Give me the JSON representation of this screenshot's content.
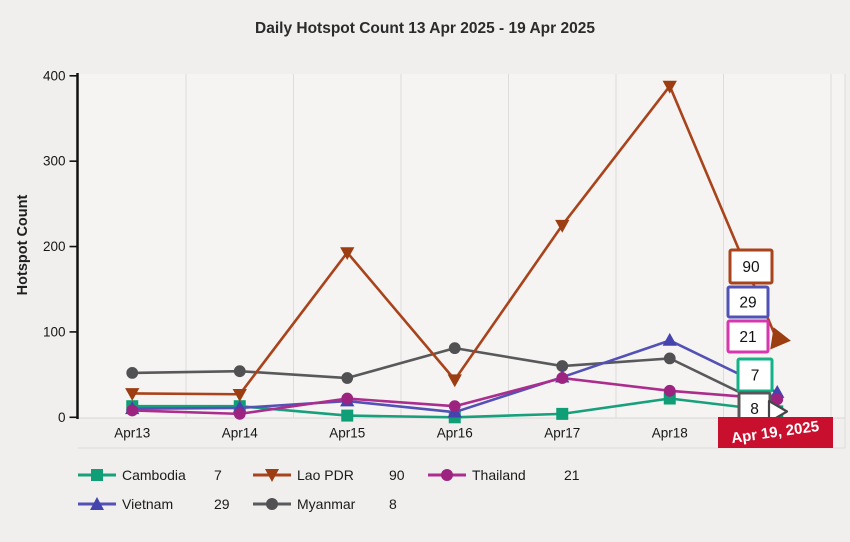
{
  "chart_data": {
    "type": "line",
    "title": "Daily Hotspot Count 13 Apr 2025 - 19 Apr 2025",
    "ylabel": "Hotspot Count",
    "xlabel": "",
    "categories": [
      "Apr13",
      "Apr14",
      "Apr15",
      "Apr16",
      "Apr17",
      "Apr18"
    ],
    "final_category_label": "Apr 19, 2025",
    "ylim": [
      0,
      400
    ],
    "yticks": [
      0,
      100,
      200,
      300,
      400
    ],
    "grid": "vertical-band-boundaries",
    "legend_position": "bottom",
    "series": [
      {
        "name": "Cambodia",
        "marker": "square",
        "color": "#18a07c",
        "marker_color": "#0f9e76",
        "label_border": "#13b287",
        "values": [
          13,
          13,
          2,
          0,
          4,
          22,
          7
        ],
        "end_value": 7
      },
      {
        "name": "Lao PDR",
        "marker": "triangle-down",
        "color": "#a8431b",
        "marker_color": "#9c3d12",
        "label_border": "#a8431b",
        "values": [
          28,
          27,
          193,
          44,
          225,
          388,
          90
        ],
        "end_value": 90
      },
      {
        "name": "Thailand",
        "marker": "circle",
        "color": "#ab2d8d",
        "marker_color": "#9c2480",
        "label_border": "#d636ae",
        "values": [
          8,
          4,
          22,
          13,
          46,
          31,
          21
        ],
        "end_value": 21
      },
      {
        "name": "Vietnam",
        "marker": "triangle-up",
        "color": "#5351b5",
        "marker_color": "#4543ad",
        "label_border": "#5053b5",
        "values": [
          10,
          11,
          19,
          6,
          47,
          90,
          29
        ],
        "end_value": 29
      },
      {
        "name": "Myanmar",
        "marker": "circle",
        "color": "#59595b",
        "marker_color": "#515154",
        "label_border": "#58585a",
        "values": [
          52,
          54,
          46,
          81,
          60,
          69,
          8
        ],
        "end_value": 8
      }
    ],
    "end_label_order": [
      "Lao PDR",
      "Vietnam",
      "Thailand",
      "Cambodia",
      "Myanmar"
    ],
    "legend_rows": [
      [
        "Cambodia",
        "Lao PDR",
        "Thailand"
      ],
      [
        "Vietnam",
        "Myanmar"
      ]
    ]
  },
  "colors": {
    "highlight_bg": "#c8102e",
    "highlight_text": "#ffffff",
    "axis": "#111111",
    "grid": "#dddcda",
    "plot_bg": "#f5f4f2",
    "page_bg": "#f0efed"
  }
}
